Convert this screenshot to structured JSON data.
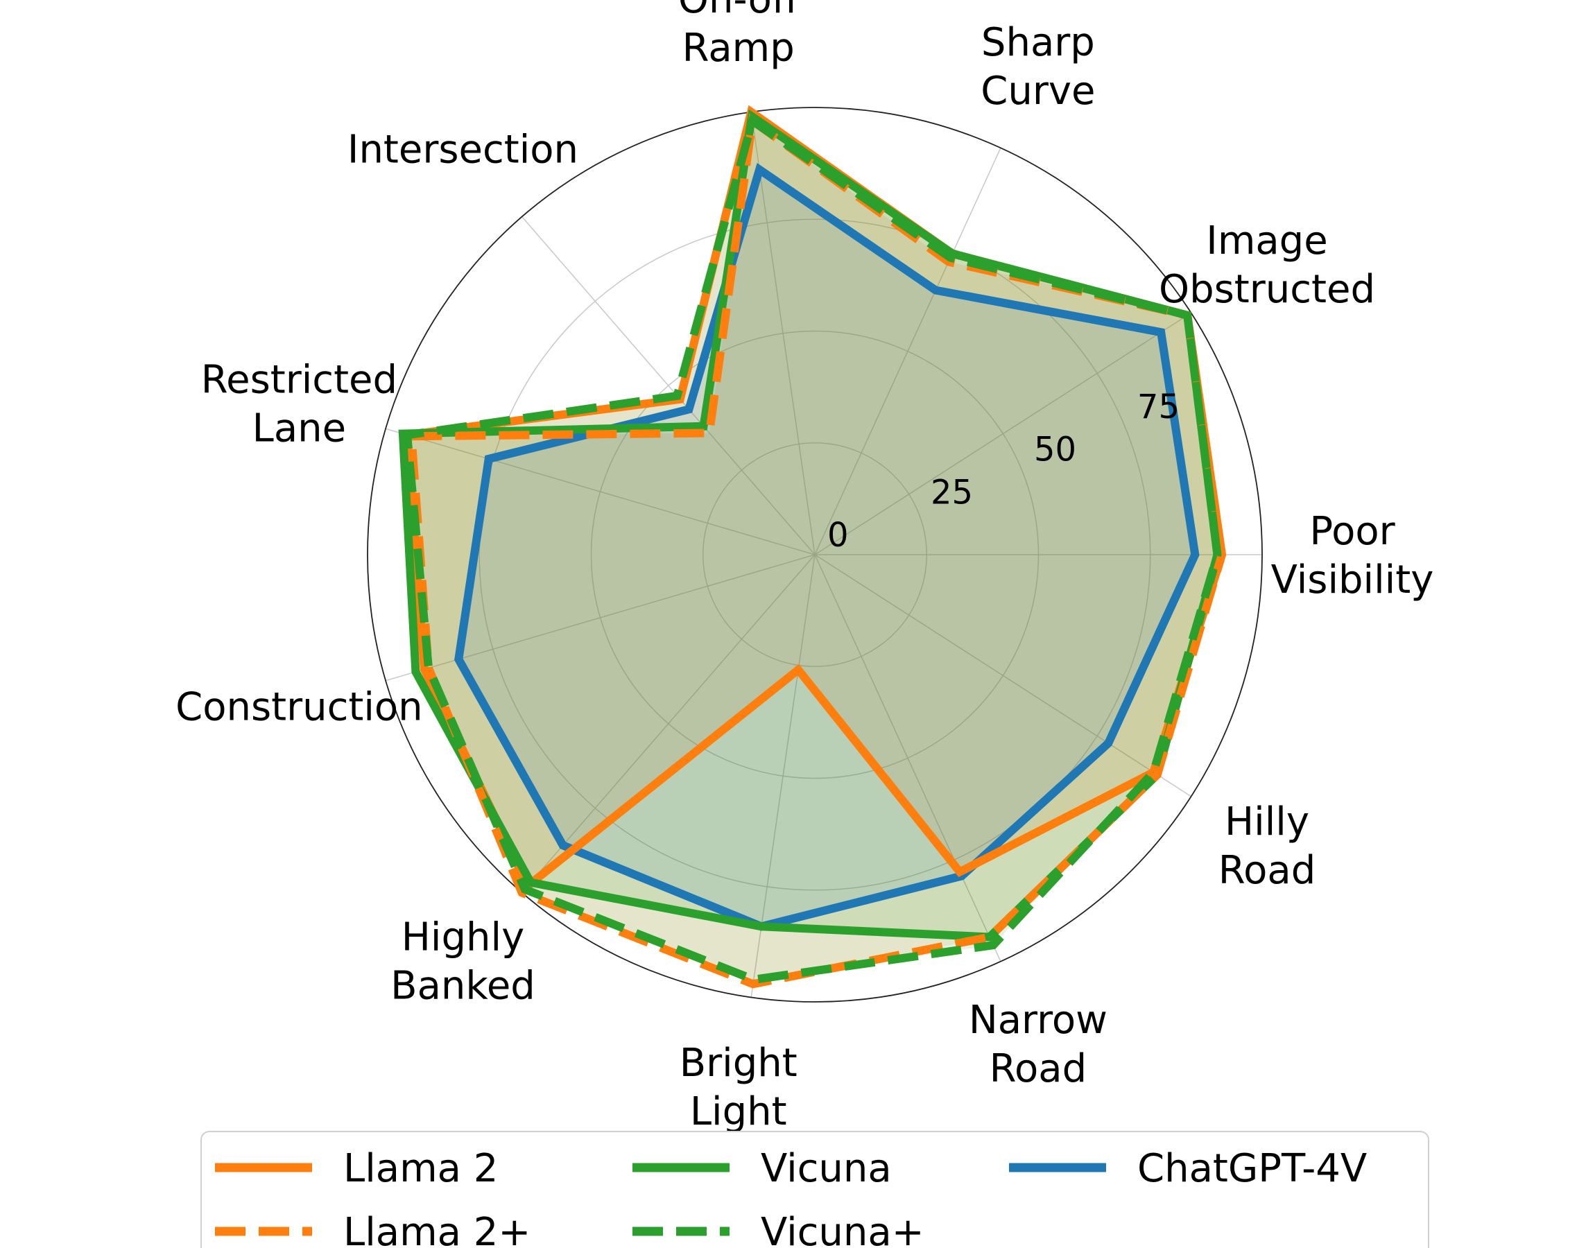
{
  "chart_data": {
    "type": "radar",
    "categories": [
      [
        "Poor",
        "Visibility"
      ],
      [
        "Image",
        "Obstructed"
      ],
      [
        "Sharp",
        "Curve"
      ],
      [
        "On-off",
        "Ramp"
      ],
      [
        "Intersection"
      ],
      [
        "Restricted",
        "Lane"
      ],
      [
        "Construction"
      ],
      [
        "Highly",
        "Banked"
      ],
      [
        "Bright",
        "Light"
      ],
      [
        "Narrow",
        "Road"
      ],
      [
        "Hilly",
        "Road"
      ]
    ],
    "radial_ticks": [
      0,
      25,
      50,
      75
    ],
    "rlim": [
      0,
      100
    ],
    "grid": true,
    "legend_position": "bottom",
    "series": [
      {
        "name": "Llama 2",
        "color": "#ff7f0e",
        "dash": "solid",
        "values": [
          91,
          99,
          74,
          100,
          46,
          95,
          91,
          98,
          26,
          78,
          90
        ]
      },
      {
        "name": "Llama 2+",
        "color": "#ff7f0e",
        "dash": "dashed",
        "values": [
          91,
          99,
          72,
          98,
          36,
          94,
          90,
          100,
          97,
          94,
          91
        ]
      },
      {
        "name": "Vicuna",
        "color": "#2ca02c",
        "dash": "solid",
        "values": [
          90,
          99,
          74,
          99,
          38,
          96,
          93,
          97,
          84,
          94,
          91
        ]
      },
      {
        "name": "Vicuna+",
        "color": "#2ca02c",
        "dash": "dashed",
        "values": [
          90,
          99,
          73,
          98,
          47,
          95,
          90,
          99,
          96,
          96,
          90
        ]
      },
      {
        "name": "ChatGPT-4V",
        "color": "#1f77b4",
        "dash": "solid",
        "values": [
          85,
          92,
          65,
          87,
          43,
          76,
          83,
          86,
          84,
          79,
          78
        ]
      }
    ]
  }
}
